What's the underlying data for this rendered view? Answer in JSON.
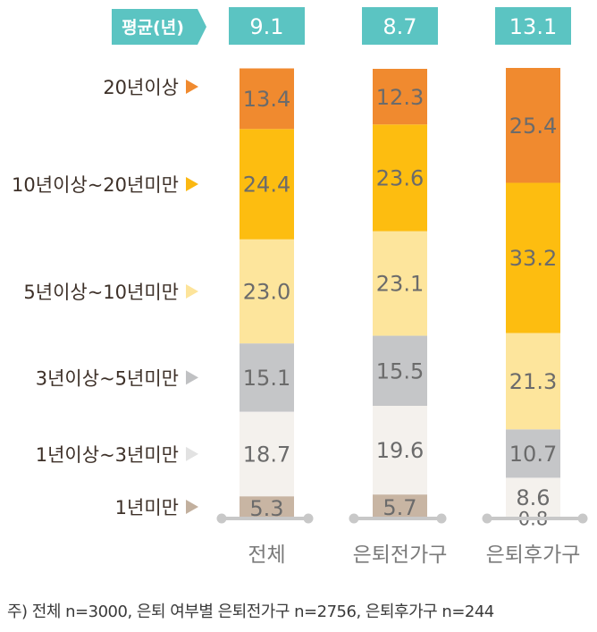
{
  "chart_data": {
    "type": "bar",
    "stacked": true,
    "avg_label": "평균(년)",
    "categories": [
      "전체",
      "은퇴전가구",
      "은퇴후가구"
    ],
    "averages": [
      "9.1",
      "8.7",
      "13.1"
    ],
    "series": [
      {
        "name": "1년미만",
        "color": "#c8b5a3",
        "values": [
          5.3,
          5.7,
          0.8
        ],
        "labels": [
          "5.3",
          "5.7",
          "0.8"
        ]
      },
      {
        "name": "1년이상~3년미만",
        "color": "#f4f1ed",
        "values": [
          18.7,
          19.6,
          8.6
        ],
        "labels": [
          "18.7",
          "19.6",
          "8.6"
        ]
      },
      {
        "name": "3년이상~5년미만",
        "color": "#c5c6c8",
        "values": [
          15.1,
          15.5,
          10.7
        ],
        "labels": [
          "15.1",
          "15.5",
          "10.7"
        ]
      },
      {
        "name": "5년이상~10년미만",
        "color": "#fde59c",
        "values": [
          23.0,
          23.1,
          21.3
        ],
        "labels": [
          "23.0",
          "23.1",
          "21.3"
        ]
      },
      {
        "name": "10년이상~20년미만",
        "color": "#fdbd10",
        "values": [
          24.4,
          23.6,
          33.2
        ],
        "labels": [
          "24.4",
          "23.6",
          "33.2"
        ]
      },
      {
        "name": "20년이상",
        "color": "#f08a2f",
        "values": [
          13.4,
          12.3,
          25.4
        ],
        "labels": [
          "13.4",
          "12.3",
          "25.4"
        ]
      }
    ],
    "legend_arrow_colors": [
      "#c2b09e",
      "#e2e2e2",
      "#c0c1c3",
      "#fde49a",
      "#fbb812",
      "#f08a2f"
    ],
    "colors": {
      "header": "#5bc4c2",
      "axis": "#c8c8c8",
      "label": "#7a7a7a",
      "legend_text": "#3d3028",
      "value_text": "#6b6b6b"
    },
    "ylim": [
      0,
      100
    ]
  },
  "footnote": "주) 전체 n=3000, 은퇴 여부별 은퇴전가구 n=2756, 은퇴후가구 n=244"
}
